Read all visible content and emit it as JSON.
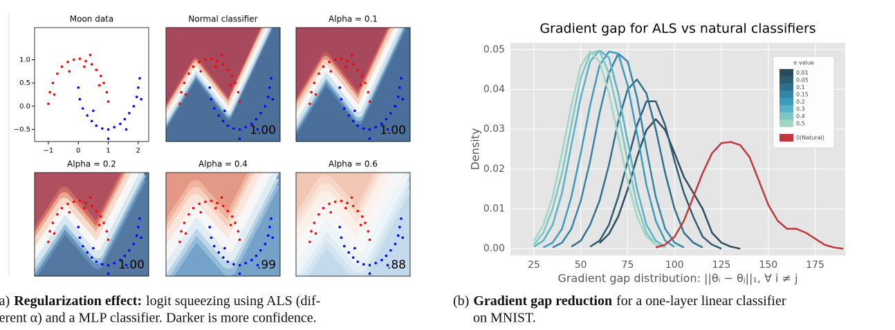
{
  "chart_data": [
    {
      "type": "scatter",
      "title": "Moon data",
      "xlim": [
        -1.46,
        2.35
      ],
      "ylim": [
        -0.76,
        1.69
      ],
      "xticks": [
        {
          "value": -1,
          "label": "−1"
        },
        0,
        1,
        2
      ],
      "yticks": [
        {
          "value": -0.5,
          "label": "−0.5"
        },
        {
          "value": 0,
          "label": "0.0"
        },
        0.5,
        {
          "value": 1,
          "label": "1.0"
        }
      ],
      "series": [
        {
          "color": "#ff0000",
          "x": [
            -1.0,
            -0.95,
            -0.85,
            -0.7,
            -0.55,
            -0.35,
            -0.15,
            0.05,
            0.25,
            0.45,
            0.6,
            0.75,
            0.85,
            0.95,
            1.0,
            -0.3,
            0.2,
            -0.8,
            0.4,
            0.7
          ],
          "values": [
            0.05,
            0.3,
            0.5,
            0.7,
            0.85,
            0.95,
            1.0,
            1.02,
            0.97,
            0.9,
            0.78,
            0.65,
            0.5,
            0.3,
            0.1,
            0.75,
            0.85,
            0.25,
            1.1,
            0.45
          ]
        },
        {
          "color": "#0000ff",
          "x": [
            0.0,
            0.05,
            0.15,
            0.3,
            0.45,
            0.6,
            0.8,
            1.0,
            1.2,
            1.4,
            1.55,
            1.7,
            1.85,
            1.95,
            2.0,
            2.05,
            1.0,
            0.5,
            1.6,
            2.1
          ],
          "values": [
            0.4,
            0.15,
            -0.05,
            -0.2,
            -0.32,
            -0.42,
            -0.48,
            -0.5,
            -0.45,
            -0.38,
            -0.28,
            -0.15,
            0.0,
            0.2,
            0.4,
            0.6,
            -0.7,
            -0.1,
            -0.5,
            0.15
          ]
        }
      ]
    },
    {
      "type": "contour",
      "title": "Normal classifier",
      "annotations": [
        "1.00"
      ]
    },
    {
      "type": "contour",
      "title": "Alpha = 0.1",
      "annotations": [
        "1.00"
      ]
    },
    {
      "type": "contour",
      "title": "Alpha = 0.2",
      "annotations": [
        "1.00"
      ]
    },
    {
      "type": "contour",
      "title": "Alpha = 0.4",
      "annotations": [
        ".99"
      ]
    },
    {
      "type": "contour",
      "title": "Alpha = 0.6",
      "annotations": [
        ".88"
      ]
    },
    {
      "type": "line",
      "title": "Gradient gap for ALS vs natural classifiers",
      "x_label": "Gradient gap distribution: ||θᵢ − θⱼ||₁, ∀ i ≠ j",
      "y_label": "Density",
      "legend_title": "α value",
      "legend": "upper right",
      "grid": true,
      "xlim": [
        12.5,
        191
      ],
      "ylim": [
        -0.0017,
        0.0517
      ],
      "xticks": [
        25,
        50,
        75,
        100,
        125,
        150,
        175
      ],
      "yticks": [
        {
          "value": 0,
          "label": "0.00"
        },
        0.01,
        0.02,
        0.03,
        0.04,
        0.05
      ],
      "x": [
        20,
        25,
        30,
        35,
        40,
        45,
        50,
        55,
        60,
        65,
        70,
        75,
        80,
        85,
        90,
        95,
        100,
        105,
        110,
        115,
        120,
        125,
        130,
        135,
        140,
        145,
        150,
        155,
        160,
        165,
        170,
        175,
        180,
        185,
        190,
        195
      ],
      "series": [
        {
          "name": "0.01",
          "color": "#2b4a5a",
          "values": [
            null,
            null,
            null,
            null,
            null,
            null,
            null,
            null,
            0.0014,
            0.0037,
            0.0081,
            0.0149,
            0.023,
            0.0298,
            0.0325,
            0.0298,
            0.024,
            0.018,
            0.014,
            0.01,
            0.004,
            0.0015,
            0.0005,
            0,
            null,
            null,
            null,
            null,
            null,
            null,
            null,
            null,
            null,
            null,
            null,
            null
          ]
        },
        {
          "name": "0.05",
          "color": "#2c5c74",
          "values": [
            null,
            null,
            null,
            null,
            null,
            null,
            null,
            0.0005,
            0.002,
            0.006,
            0.013,
            0.022,
            0.031,
            0.037,
            0.037,
            0.031,
            0.022,
            0.014,
            0.008,
            0.003,
            0.001,
            0,
            null,
            null,
            null,
            null,
            null,
            null,
            null,
            null,
            null,
            null,
            null,
            null,
            null,
            null
          ]
        },
        {
          "name": "0.1",
          "color": "#2e6f8e",
          "values": [
            null,
            null,
            null,
            null,
            null,
            0.0005,
            0.002,
            0.006,
            0.012,
            0.021,
            0.032,
            0.04,
            0.0425,
            0.039,
            0.03,
            0.019,
            0.01,
            0.004,
            0.0015,
            0.0003,
            null,
            null,
            null,
            null,
            null,
            null,
            null,
            null,
            null,
            null,
            null,
            null,
            null,
            null,
            null,
            null
          ]
        },
        {
          "name": "0.15",
          "color": "#3385a5",
          "values": [
            null,
            null,
            null,
            0.0003,
            0.0015,
            0.005,
            0.012,
            0.022,
            0.034,
            0.044,
            0.049,
            0.047,
            0.038,
            0.025,
            0.013,
            0.005,
            0.0015,
            0.0003,
            null,
            null,
            null,
            null,
            null,
            null,
            null,
            null,
            null,
            null,
            null,
            null,
            null,
            null,
            null,
            null,
            null,
            null
          ]
        },
        {
          "name": "0.2",
          "color": "#3a9bbd",
          "values": [
            null,
            null,
            0.0003,
            0.0015,
            0.005,
            0.013,
            0.024,
            0.036,
            0.046,
            0.0495,
            0.049,
            0.041,
            0.029,
            0.016,
            0.007,
            0.002,
            0.0004,
            null,
            null,
            null,
            null,
            null,
            null,
            null,
            null,
            null,
            null,
            null,
            null,
            null,
            null,
            null,
            null,
            null,
            null,
            null
          ]
        },
        {
          "name": "0.3",
          "color": "#5ab0c4",
          "values": [
            null,
            0.0005,
            0.002,
            0.006,
            0.014,
            0.026,
            0.038,
            0.047,
            0.0498,
            0.048,
            0.039,
            0.027,
            0.015,
            0.006,
            0.002,
            0.0004,
            null,
            null,
            null,
            null,
            null,
            null,
            null,
            null,
            null,
            null,
            null,
            null,
            null,
            null,
            null,
            null,
            null,
            null,
            null,
            null
          ]
        },
        {
          "name": "0.4",
          "color": "#7ec5c5",
          "values": [
            null,
            0.001,
            0.004,
            0.01,
            0.019,
            0.031,
            0.043,
            0.049,
            0.0497,
            0.044,
            0.034,
            0.022,
            0.011,
            0.004,
            0.001,
            0.0002,
            null,
            null,
            null,
            null,
            null,
            null,
            null,
            null,
            null,
            null,
            null,
            null,
            null,
            null,
            null,
            null,
            null,
            null,
            null,
            null
          ]
        },
        {
          "name": "0.5",
          "color": "#9fd6c4",
          "values": [
            null,
            0.002,
            0.006,
            0.013,
            0.024,
            0.036,
            0.046,
            0.0495,
            0.047,
            0.039,
            0.028,
            0.017,
            0.008,
            0.003,
            0.001,
            0.0002,
            null,
            null,
            null,
            null,
            null,
            null,
            null,
            null,
            null,
            null,
            null,
            null,
            null,
            null,
            null,
            null,
            null,
            null,
            null,
            null
          ]
        },
        {
          "name": "0(Natural)",
          "color": "#c0363a",
          "values": [
            null,
            null,
            null,
            null,
            null,
            null,
            null,
            null,
            null,
            null,
            null,
            null,
            null,
            null,
            0.0003,
            0.001,
            0.003,
            0.007,
            0.013,
            0.019,
            0.024,
            0.0265,
            0.0268,
            0.026,
            0.023,
            0.017,
            0.011,
            0.007,
            0.005,
            0.005,
            0.004,
            0.0025,
            0.001,
            0.0003,
            0,
            null
          ]
        }
      ]
    }
  ],
  "captions": [
    {
      "label": "(a)",
      "bold": "Regularization effect:",
      "lines": [
        "logit squeezing using ALS (dif-",
        "ferent α) and a MLP classifier. Darker is more confidence."
      ]
    },
    {
      "label": "(b)",
      "bold": "Gradient gap reduction",
      "lines": [
        "for a one-layer linear classifier",
        "on MNIST."
      ]
    }
  ]
}
